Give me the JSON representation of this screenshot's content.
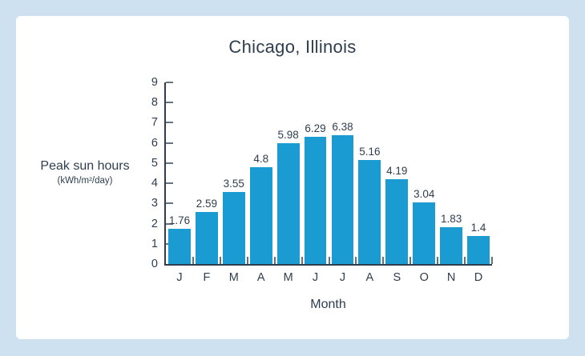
{
  "frame": {
    "background_color": "#cde1f0",
    "card_color": "#ffffff"
  },
  "chart_data": {
    "type": "bar",
    "title": "Chicago, Illinois",
    "xlabel": "Month",
    "ylabel": "Peak sun hours",
    "ylabel_sub": "(kWh/m²/day)",
    "categories": [
      "J",
      "F",
      "M",
      "A",
      "M",
      "J",
      "J",
      "A",
      "S",
      "O",
      "N",
      "D"
    ],
    "values": [
      1.76,
      2.59,
      3.55,
      4.8,
      5.98,
      6.29,
      6.38,
      5.16,
      4.19,
      3.04,
      1.83,
      1.4
    ],
    "value_labels": [
      "1.76",
      "2.59",
      "3.55",
      "4.8",
      "5.98",
      "6.29",
      "6.38",
      "5.16",
      "4.19",
      "3.04",
      "1.83",
      "1.4"
    ],
    "ylim": [
      0,
      9
    ],
    "yticks": [
      0,
      1,
      2,
      3,
      4,
      5,
      6,
      7,
      8,
      9
    ],
    "grid": false,
    "legend": "none",
    "bar_color": "#1a9bd2",
    "axis_color": "#2e3e4e",
    "tick_color": "#64737f",
    "text_color": "#2e3e4e"
  }
}
